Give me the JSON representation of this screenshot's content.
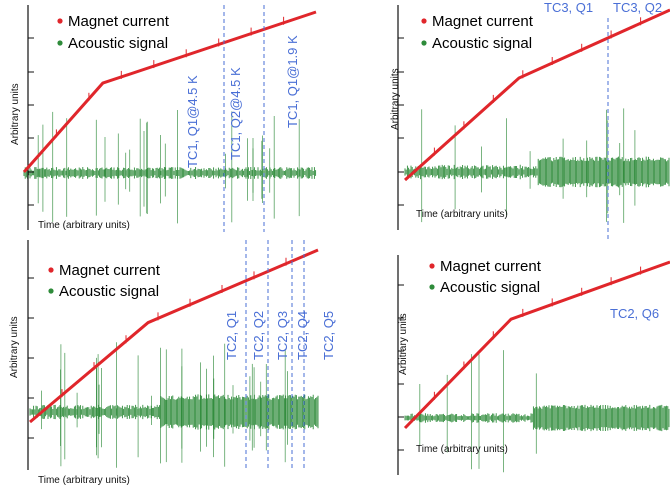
{
  "colors": {
    "magnet": "#e0262b",
    "acoustic": "#2e8b3a",
    "annotation": "#4a6fd6",
    "axis": "#111111"
  },
  "chart_data": [
    {
      "type": "line",
      "legend": [
        "Magnet current",
        "Acoustic signal"
      ],
      "xlabel": "Time (arbitrary units)",
      "ylabel": "Arbitrary units",
      "annotations": [
        "TC1, Q1@4.5 K",
        "TC1, Q2@4.5 K",
        "TC1, Q1@1.9 K"
      ],
      "series": [
        {
          "name": "Magnet current",
          "x": [
            0,
            0.27,
            1.0
          ],
          "y": [
            0.1,
            0.6,
            1.0
          ]
        },
        {
          "name": "Acoustic signal",
          "x": [
            0,
            0.2,
            0.4,
            0.6,
            0.8,
            1.0
          ],
          "y": [
            0,
            0,
            0,
            0,
            0,
            0
          ]
        }
      ]
    },
    {
      "type": "line",
      "legend": [
        "Magnet current",
        "Acoustic signal"
      ],
      "xlabel": "Time (arbitrary units)",
      "ylabel": "Arbitrary units",
      "annotations": [
        "TC3, Q1",
        "TC3, Q2"
      ],
      "series": [
        {
          "name": "Magnet current",
          "x": [
            0,
            0.43,
            1.0
          ],
          "y": [
            0.1,
            0.64,
            1.0
          ]
        },
        {
          "name": "Acoustic signal",
          "x": [
            0,
            0.2,
            0.4,
            0.6,
            0.8,
            1.0
          ],
          "y": [
            0,
            0,
            0,
            0,
            0,
            0
          ]
        }
      ]
    },
    {
      "type": "line",
      "legend": [
        "Magnet current",
        "Acoustic signal"
      ],
      "xlabel": "Time (arbitrary units)",
      "ylabel": "Arbitrary units",
      "annotations": [
        "TC2, Q1",
        "TC2, Q2",
        "TC2, Q3",
        "TC2, Q4",
        "TC2, Q5"
      ],
      "series": [
        {
          "name": "Magnet current",
          "x": [
            0,
            0.41,
            1.0
          ],
          "y": [
            0.1,
            0.62,
            1.0
          ]
        },
        {
          "name": "Acoustic signal",
          "x": [
            0,
            0.2,
            0.4,
            0.6,
            0.8,
            1.0
          ],
          "y": [
            0,
            0,
            0,
            0,
            0,
            0
          ]
        }
      ]
    },
    {
      "type": "line",
      "legend": [
        "Magnet current",
        "Acoustic signal"
      ],
      "xlabel": "Time (arbitrary units)",
      "ylabel": "Arbitrary units",
      "annotations": [
        "TC2, Q6"
      ],
      "series": [
        {
          "name": "Magnet current",
          "x": [
            0,
            0.4,
            1.0
          ],
          "y": [
            0.1,
            0.69,
            1.0
          ]
        },
        {
          "name": "Acoustic signal",
          "x": [
            0,
            0.2,
            0.4,
            0.6,
            0.8,
            1.0
          ],
          "y": [
            0,
            0,
            0,
            0,
            0,
            0
          ]
        }
      ]
    }
  ]
}
